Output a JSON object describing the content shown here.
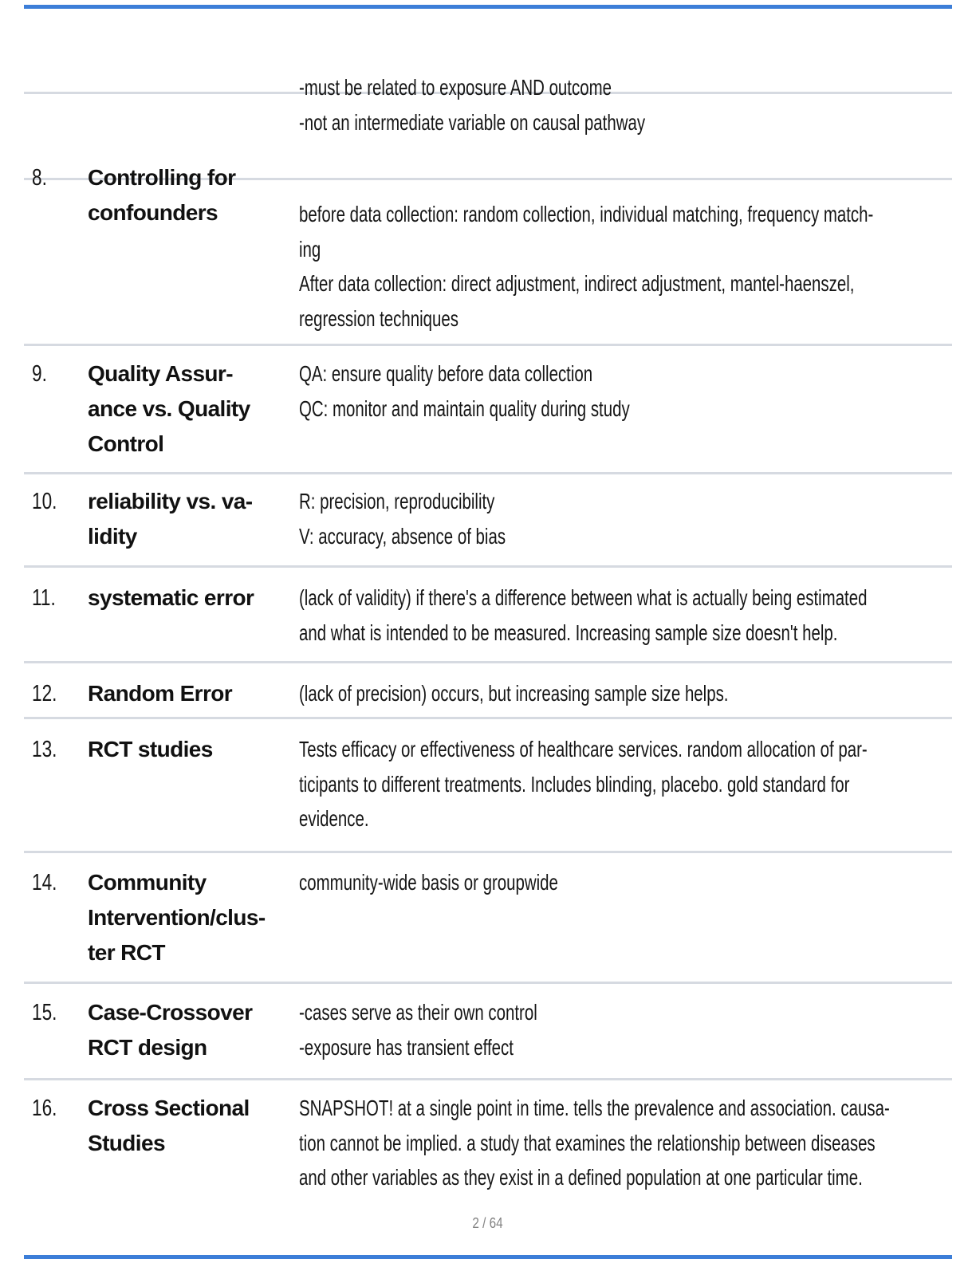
{
  "document": {
    "colors": {
      "accent_bar": "#3c7ed8",
      "divider": "#d6dae1",
      "text": "#161616"
    },
    "footer": {
      "page_indicator": "2 / 64"
    },
    "continuation": {
      "def_lines": [
        "-must be related to exposure AND outcome",
        "-not an intermediate variable on causal pathway"
      ]
    },
    "rows": [
      {
        "num": "8.",
        "term_lines": [
          "Controlling for",
          "confounders"
        ],
        "def_lines": [
          "before data collection: random collection, individual matching, frequency match-",
          "ing",
          "After data collection: direct adjustment, indirect adjustment, mantel-haenszel,",
          "regression techniques"
        ]
      },
      {
        "num": "9.",
        "term_lines": [
          "Quality Assur-",
          "ance vs. Quality",
          "Control"
        ],
        "def_lines": [
          "QA: ensure quality before data collection",
          "QC: monitor and maintain quality during study"
        ]
      },
      {
        "num": "10.",
        "term_lines": [
          "reliability vs. va-",
          "lidity"
        ],
        "def_lines": [
          "R: precision, reproducibility",
          "V: accuracy, absence of bias"
        ]
      },
      {
        "num": "11.",
        "term_lines": [
          "systematic error"
        ],
        "def_lines": [
          "(lack of validity) if there's a difference between what is actually being estimated",
          "and what is intended to be measured. Increasing sample size doesn't help."
        ]
      },
      {
        "num": "12.",
        "term_lines": [
          "Random Error"
        ],
        "def_lines": [
          "(lack of precision) occurs, but increasing sample size helps."
        ]
      },
      {
        "num": "13.",
        "term_lines": [
          "RCT studies"
        ],
        "def_lines": [
          "Tests efficacy or effectiveness of healthcare services. random allocation of par-",
          "ticipants to different treatments. Includes blinding, placebo. gold standard for",
          "evidence."
        ]
      },
      {
        "num": "14.",
        "term_lines": [
          "Community",
          "Intervention/clus-",
          "ter RCT"
        ],
        "def_lines": [
          "community-wide basis or groupwide"
        ]
      },
      {
        "num": "15.",
        "term_lines": [
          "Case-Crossover",
          "RCT design"
        ],
        "def_lines": [
          "-cases serve as their own control",
          "-exposure has transient effect"
        ]
      },
      {
        "num": "16.",
        "term_lines": [
          "Cross Sectional",
          "Studies"
        ],
        "def_lines": [
          "SNAPSHOT! at a single point in time. tells the prevalence and association. causa-",
          "tion cannot be implied. a study that examines the relationship between diseases",
          "and other variables as they exist in a defined population at one particular time."
        ]
      }
    ]
  }
}
